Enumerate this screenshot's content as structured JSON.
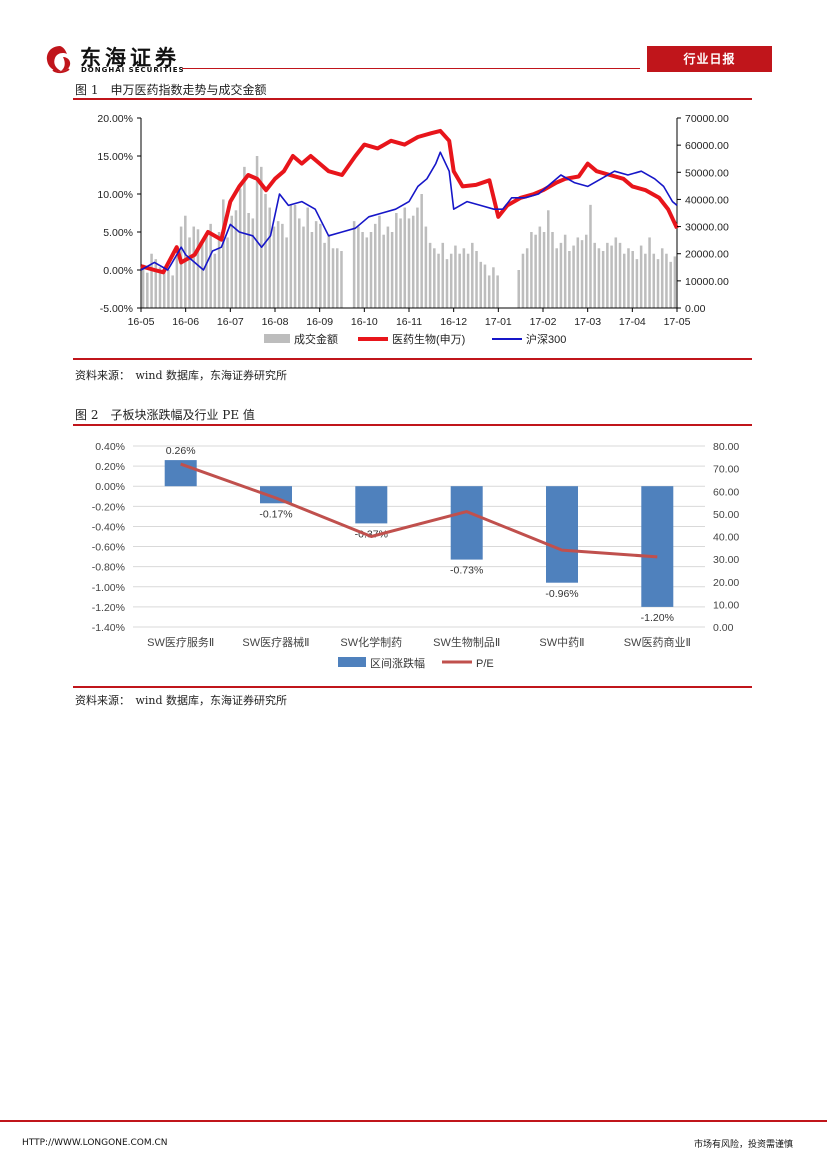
{
  "header": {
    "company_cn": "东海证券",
    "company_en": "DONGHAI SECURITIES",
    "report_type": "行业日报"
  },
  "colors": {
    "brand_red": "#c0151b",
    "chart1_volume": "#bdbdbd",
    "chart1_sector": "#e8151b",
    "chart1_index": "#1616c8",
    "chart2_bar": "#4f81bd",
    "chart2_line": "#c0504d"
  },
  "figure1": {
    "caption": "图 1　申万医药指数走势与成交金额",
    "source": "资料来源：　wind 数据库，东海证券研究所"
  },
  "figure2": {
    "caption": "图 2　子板块涨跌幅及行业 PE 值",
    "source": "资料来源：　wind 数据库，东海证券研究所"
  },
  "footer": {
    "url": "HTTP://WWW.LONGONE.COM.CN",
    "disclaimer": "市场有风险，投资需谨慎"
  },
  "chart_data": [
    {
      "type": "line",
      "title": "申万医药指数走势与成交金额",
      "x_ticks": [
        "16-05",
        "16-06",
        "16-07",
        "16-08",
        "16-09",
        "16-10",
        "16-11",
        "16-12",
        "17-01",
        "17-02",
        "17-03",
        "17-04",
        "17-05"
      ],
      "y_left": {
        "range": [
          -5,
          20
        ],
        "ticks": [
          "20.00%",
          "15.00%",
          "10.00%",
          "5.00%",
          "0.00%",
          "-5.00%"
        ]
      },
      "y_right": {
        "range": [
          0,
          70000
        ],
        "ticks": [
          "70000.00",
          "60000.00",
          "50000.00",
          "40000.00",
          "30000.00",
          "20000.00",
          "10000.00",
          "0.00"
        ]
      },
      "legend": [
        "成交金额",
        "医药生物(申万)",
        "沪深300"
      ],
      "series": [
        {
          "name": "医药生物(申万)",
          "axis": "left",
          "points": [
            [
              0,
              0.5
            ],
            [
              0.3,
              0
            ],
            [
              0.5,
              -0.3
            ],
            [
              0.8,
              3
            ],
            [
              0.9,
              1
            ],
            [
              1.2,
              2
            ],
            [
              1.5,
              5
            ],
            [
              1.8,
              4
            ],
            [
              2.0,
              9
            ],
            [
              2.2,
              11
            ],
            [
              2.4,
              12.5
            ],
            [
              2.6,
              12
            ],
            [
              2.8,
              10.5
            ],
            [
              3.0,
              12
            ],
            [
              3.2,
              13
            ],
            [
              3.4,
              15
            ],
            [
              3.6,
              14
            ],
            [
              3.8,
              15
            ],
            [
              4.0,
              14
            ],
            [
              4.2,
              13
            ],
            [
              4.5,
              12.5
            ],
            [
              4.8,
              15
            ],
            [
              5.0,
              16.5
            ],
            [
              5.3,
              16
            ],
            [
              5.6,
              17
            ],
            [
              5.9,
              16.5
            ],
            [
              6.2,
              17.5
            ],
            [
              6.5,
              18
            ],
            [
              6.7,
              18.3
            ],
            [
              6.9,
              17
            ],
            [
              7.0,
              13
            ],
            [
              7.2,
              11
            ],
            [
              7.5,
              11.2
            ],
            [
              7.8,
              11.8
            ],
            [
              8.0,
              7
            ],
            [
              8.2,
              8.5
            ],
            [
              8.5,
              9.5
            ],
            [
              8.8,
              10
            ],
            [
              9.0,
              10.5
            ],
            [
              9.3,
              11.5
            ],
            [
              9.5,
              12
            ],
            [
              9.8,
              12.3
            ],
            [
              10.0,
              14
            ],
            [
              10.2,
              13
            ],
            [
              10.5,
              12.5
            ],
            [
              10.8,
              12
            ],
            [
              11.0,
              11
            ],
            [
              11.3,
              10.5
            ],
            [
              11.6,
              9.5
            ],
            [
              11.8,
              8
            ],
            [
              12.0,
              5.5
            ]
          ]
        },
        {
          "name": "沪深300",
          "axis": "left",
          "points": [
            [
              0,
              0
            ],
            [
              0.3,
              1
            ],
            [
              0.6,
              0
            ],
            [
              0.9,
              3
            ],
            [
              1.0,
              2
            ],
            [
              1.2,
              1
            ],
            [
              1.4,
              0
            ],
            [
              1.6,
              2.5
            ],
            [
              1.8,
              3
            ],
            [
              2.0,
              6
            ],
            [
              2.2,
              5
            ],
            [
              2.5,
              4.5
            ],
            [
              2.7,
              3
            ],
            [
              2.9,
              4.5
            ],
            [
              3.1,
              10
            ],
            [
              3.3,
              8.5
            ],
            [
              3.6,
              9
            ],
            [
              3.9,
              8
            ],
            [
              4.2,
              4.5
            ],
            [
              4.5,
              5
            ],
            [
              4.8,
              5.5
            ],
            [
              5.1,
              7
            ],
            [
              5.4,
              7.5
            ],
            [
              5.7,
              8
            ],
            [
              6.0,
              9
            ],
            [
              6.2,
              11
            ],
            [
              6.4,
              12
            ],
            [
              6.6,
              14
            ],
            [
              6.7,
              15.5
            ],
            [
              6.9,
              13
            ],
            [
              7.0,
              8
            ],
            [
              7.3,
              9
            ],
            [
              7.6,
              8.5
            ],
            [
              7.9,
              8
            ],
            [
              8.1,
              8
            ],
            [
              8.3,
              9.5
            ],
            [
              8.6,
              9.5
            ],
            [
              8.9,
              10
            ],
            [
              9.1,
              11
            ],
            [
              9.4,
              12.5
            ],
            [
              9.7,
              11.5
            ],
            [
              10.0,
              11
            ],
            [
              10.3,
              12
            ],
            [
              10.6,
              13
            ],
            [
              10.9,
              12.5
            ],
            [
              11.2,
              13
            ],
            [
              11.5,
              12
            ],
            [
              11.7,
              11
            ],
            [
              11.9,
              9
            ],
            [
              12.0,
              8.5
            ]
          ]
        },
        {
          "name": "成交金额",
          "axis": "right",
          "type": "bar",
          "values": [
            16000,
            13000,
            20000,
            18000,
            15000,
            13000,
            14000,
            12000,
            19000,
            30000,
            34000,
            26000,
            30000,
            29000,
            24000,
            27000,
            31000,
            20000,
            28000,
            40000,
            26000,
            34000,
            36000,
            44000,
            52000,
            35000,
            33000,
            56000,
            52000,
            42000,
            37000,
            30000,
            32000,
            31000,
            26000,
            38000,
            38000,
            33000,
            30000,
            37000,
            28000,
            32000,
            31000,
            24000,
            27000,
            22000,
            22000,
            21000,
            0,
            0,
            32000,
            30000,
            28000,
            26000,
            28000,
            31000,
            34000,
            27000,
            30000,
            28000,
            35000,
            33000,
            37000,
            33000,
            34000,
            37000,
            42000,
            30000,
            24000,
            22000,
            20000,
            24000,
            18000,
            20000,
            23000,
            20000,
            22000,
            20000,
            24000,
            21000,
            17000,
            16000,
            12000,
            15000,
            12000,
            0,
            0,
            0,
            0,
            14000,
            20000,
            22000,
            28000,
            27000,
            30000,
            28000,
            36000,
            28000,
            22000,
            24000,
            27000,
            21000,
            23000,
            26000,
            25000,
            27000,
            38000,
            24000,
            22000,
            21000,
            24000,
            23000,
            26000,
            24000,
            20000,
            22000,
            21000,
            18000,
            23000,
            20000,
            26000,
            20000,
            18000,
            22000,
            20000,
            17000,
            19000
          ]
        }
      ]
    },
    {
      "type": "bar",
      "title": "子板块涨跌幅及行业 PE 值",
      "categories": [
        "SW医疗服务Ⅱ",
        "SW医疗器械Ⅱ",
        "SW化学制药",
        "SW生物制品Ⅱ",
        "SW中药Ⅱ",
        "SW医药商业Ⅱ"
      ],
      "y_left": {
        "range": [
          -1.4,
          0.4
        ],
        "ticks": [
          "0.40%",
          "0.20%",
          "0.00%",
          "-0.20%",
          "-0.40%",
          "-0.60%",
          "-0.80%",
          "-1.00%",
          "-1.20%",
          "-1.40%"
        ]
      },
      "y_right": {
        "range": [
          0,
          80
        ],
        "ticks": [
          "80.00",
          "70.00",
          "60.00",
          "50.00",
          "40.00",
          "30.00",
          "20.00",
          "10.00",
          "0.00"
        ]
      },
      "legend": [
        "区间涨跌幅",
        "P/E"
      ],
      "series": [
        {
          "name": "区间涨跌幅",
          "axis": "left",
          "values": [
            0.26,
            -0.17,
            -0.37,
            -0.73,
            -0.96,
            -1.2
          ],
          "labels": [
            "0.26%",
            "-0.17%",
            "-0.37%",
            "-0.73%",
            "-0.96%",
            "-1.20%"
          ]
        },
        {
          "name": "P/E",
          "axis": "right",
          "type": "line",
          "values": [
            72,
            57,
            40,
            51,
            34,
            31
          ]
        }
      ]
    }
  ]
}
